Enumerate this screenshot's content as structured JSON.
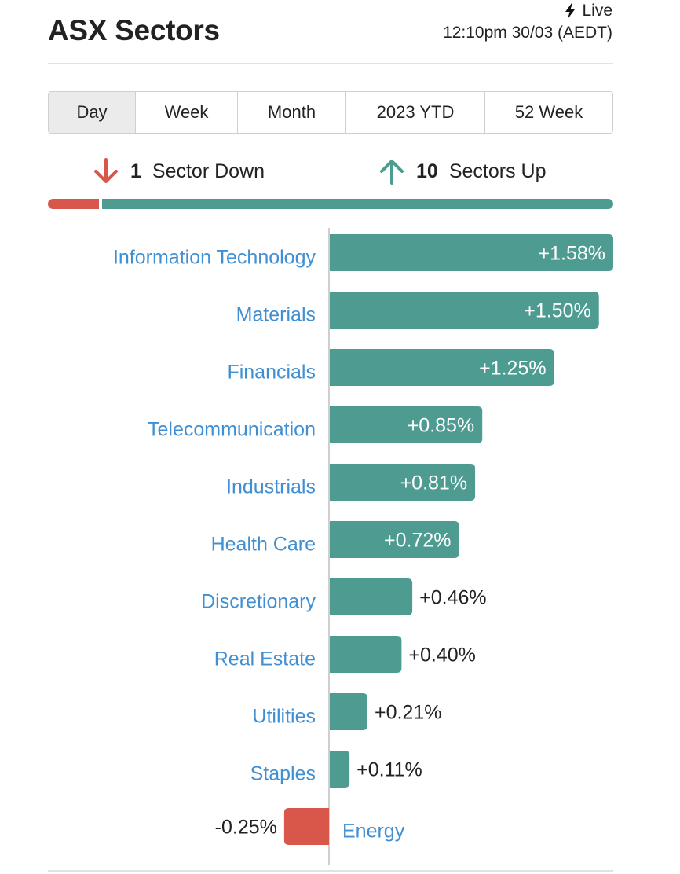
{
  "header": {
    "title": "ASX Sectors",
    "live_label": "Live",
    "timestamp": "12:10pm 30/03 (AEDT)"
  },
  "tabs": [
    {
      "label": "Day",
      "active": true
    },
    {
      "label": "Week",
      "active": false
    },
    {
      "label": "Month",
      "active": false
    },
    {
      "label": "2023 YTD",
      "active": false
    },
    {
      "label": "52 Week",
      "active": false
    }
  ],
  "summary": {
    "down_count": "1",
    "down_label": "Sector Down",
    "up_count": "10",
    "up_label": "Sectors Up"
  },
  "colors": {
    "positive": "#4d9b91",
    "negative": "#d9574a",
    "category_text": "#3f8fd2",
    "value_text_outside": "#222222",
    "value_text_inside": "#ffffff"
  },
  "chart_data": {
    "type": "bar",
    "orientation": "horizontal",
    "categories": [
      "Information Technology",
      "Materials",
      "Financials",
      "Telecommunication",
      "Industrials",
      "Health Care",
      "Discretionary",
      "Real Estate",
      "Utilities",
      "Staples",
      "Energy"
    ],
    "values": [
      1.58,
      1.5,
      1.25,
      0.85,
      0.81,
      0.72,
      0.46,
      0.4,
      0.21,
      0.11,
      -0.25
    ],
    "value_labels": [
      "+1.58%",
      "+1.50%",
      "+1.25%",
      "+0.85%",
      "+0.81%",
      "+0.72%",
      "+0.46%",
      "+0.40%",
      "+0.21%",
      "+0.11%",
      "-0.25%"
    ],
    "title": "",
    "xlabel": "",
    "ylabel": "",
    "grid": false,
    "legend": false
  }
}
